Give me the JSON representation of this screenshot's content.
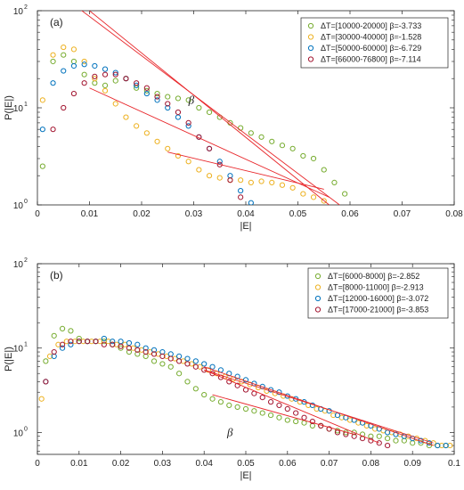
{
  "chart_data": [
    {
      "type": "scatter",
      "panel_label": "(a)",
      "xlabel": "|E|",
      "ylabel": "P(|E|)",
      "xlim": [
        0,
        0.08
      ],
      "ylim": [
        1,
        100
      ],
      "yscale": "log",
      "xticks": [
        "0",
        "0.01",
        "0.02",
        "0.03",
        "0.04",
        "0.05",
        "0.06",
        "0.07",
        "0.08"
      ],
      "xtick_values": [
        0,
        0.01,
        0.02,
        0.03,
        0.04,
        0.05,
        0.06,
        0.07,
        0.08
      ],
      "yticks": [
        {
          "base": "10",
          "exp": "0",
          "value": 1
        },
        {
          "base": "10",
          "exp": "1",
          "value": 10
        },
        {
          "base": "10",
          "exp": "2",
          "value": 100
        }
      ],
      "annotation": "β",
      "annotation_pos": [
        0.029,
        11
      ],
      "legend_position": "top-right",
      "series": [
        {
          "name": "ΔT=[10000-20000]  β=-3.733",
          "color": "#77ac30",
          "x": [
            0.001,
            0.003,
            0.005,
            0.007,
            0.009,
            0.011,
            0.013,
            0.015,
            0.017,
            0.019,
            0.021,
            0.023,
            0.025,
            0.027,
            0.029,
            0.031,
            0.033,
            0.035,
            0.037,
            0.039,
            0.041,
            0.043,
            0.045,
            0.047,
            0.049,
            0.051,
            0.053,
            0.055,
            0.057,
            0.059
          ],
          "y": [
            2.5,
            30,
            35,
            30,
            22,
            18,
            17,
            19,
            20,
            16,
            15,
            14,
            13,
            12.5,
            12,
            10,
            9,
            8,
            7,
            6.2,
            5.5,
            5,
            4.5,
            4.1,
            3.8,
            3.2,
            3,
            2.3,
            1.7,
            1.3
          ],
          "fit": {
            "x": [
              0.01,
              0.056
            ],
            "y": [
              16,
              1.2
            ]
          }
        },
        {
          "name": "ΔT=[30000-40000]  β=-1.528",
          "color": "#edb120",
          "x": [
            0.001,
            0.003,
            0.005,
            0.007,
            0.009,
            0.011,
            0.013,
            0.015,
            0.017,
            0.019,
            0.021,
            0.023,
            0.025,
            0.027,
            0.029,
            0.031,
            0.033,
            0.035,
            0.037,
            0.039,
            0.041,
            0.043,
            0.045,
            0.047,
            0.049,
            0.051,
            0.053,
            0.055
          ],
          "y": [
            12,
            35,
            42,
            40,
            30,
            20,
            15,
            11,
            8,
            6.5,
            5.5,
            4.5,
            3.8,
            3.2,
            2.8,
            2.3,
            2,
            1.9,
            1.8,
            1.8,
            1.7,
            1.75,
            1.7,
            1.6,
            1.5,
            1.3,
            1.2,
            1.1
          ],
          "fit": {
            "x": [
              0.025,
              0.055
            ],
            "y": [
              3.5,
              1.45
            ]
          }
        },
        {
          "name": "ΔT=[50000-60000]  β=-6.729",
          "color": "#0072bd",
          "x": [
            0.001,
            0.003,
            0.005,
            0.007,
            0.009,
            0.011,
            0.013,
            0.015,
            0.017,
            0.019,
            0.021,
            0.023,
            0.025,
            0.027,
            0.029,
            0.031,
            0.033,
            0.035,
            0.037,
            0.039,
            0.041
          ],
          "y": [
            6,
            18,
            24,
            27,
            28,
            27,
            25,
            23,
            20,
            17,
            14,
            12,
            10,
            8,
            6.5,
            5,
            3.8,
            2.8,
            2,
            1.4,
            1.05
          ],
          "fit": {
            "x": [
              0.008,
              0.058
            ],
            "y": [
              105,
              1.0
            ]
          }
        },
        {
          "name": "ΔT=[66000-76800]  β=-7.114",
          "color": "#a2142f",
          "x": [
            0.003,
            0.005,
            0.007,
            0.009,
            0.011,
            0.013,
            0.015,
            0.017,
            0.019,
            0.021,
            0.023,
            0.025,
            0.027,
            0.029,
            0.031,
            0.033,
            0.035,
            0.037,
            0.039
          ],
          "y": [
            6,
            10,
            14,
            18,
            21,
            22,
            22,
            20,
            18,
            16,
            13,
            11,
            9,
            7,
            5,
            3.8,
            2.6,
            1.8,
            1.2
          ],
          "fit": {
            "x": [
              0.0095,
              0.056
            ],
            "y": [
              105,
              1.0
            ]
          }
        }
      ]
    },
    {
      "type": "scatter",
      "panel_label": "(b)",
      "xlabel": "|E|",
      "ylabel": "P(|E|)",
      "xlim": [
        0,
        0.1
      ],
      "ylim": [
        0.55,
        100
      ],
      "yscale": "log",
      "xticks": [
        "0",
        "0.01",
        "0.02",
        "0.03",
        "0.04",
        "0.05",
        "0.06",
        "0.07",
        "0.08",
        "0.09",
        "0.1"
      ],
      "xtick_values": [
        0,
        0.01,
        0.02,
        0.03,
        0.04,
        0.05,
        0.06,
        0.07,
        0.08,
        0.09,
        0.1
      ],
      "yticks": [
        {
          "base": "10",
          "exp": "0",
          "value": 1
        },
        {
          "base": "10",
          "exp": "1",
          "value": 10
        },
        {
          "base": "10",
          "exp": "2",
          "value": 100
        }
      ],
      "annotation": "β",
      "annotation_pos": [
        0.0455,
        0.9
      ],
      "legend_position": "top-right",
      "series": [
        {
          "name": "ΔT=[6000-8000]  β=-2.852",
          "color": "#77ac30",
          "x": [
            0.002,
            0.004,
            0.006,
            0.008,
            0.01,
            0.012,
            0.014,
            0.016,
            0.018,
            0.02,
            0.022,
            0.024,
            0.026,
            0.028,
            0.03,
            0.032,
            0.034,
            0.036,
            0.038,
            0.04,
            0.042,
            0.044,
            0.046,
            0.048,
            0.05,
            0.052,
            0.054,
            0.056,
            0.058,
            0.06,
            0.062,
            0.064,
            0.066,
            0.068,
            0.07,
            0.072,
            0.074,
            0.076,
            0.078,
            0.08,
            0.082,
            0.084,
            0.086,
            0.088,
            0.09,
            0.092,
            0.094,
            0.096,
            0.098
          ],
          "y": [
            7,
            14,
            17,
            16,
            13,
            12,
            12,
            12,
            11,
            10,
            9,
            8.5,
            8,
            7,
            6.5,
            6,
            5,
            4,
            3.3,
            2.8,
            2.5,
            2.3,
            2.1,
            2,
            1.9,
            1.8,
            1.7,
            1.6,
            1.5,
            1.4,
            1.35,
            1.3,
            1.2,
            1.2,
            1.1,
            1.05,
            1.0,
            1.0,
            0.95,
            0.9,
            0.9,
            0.85,
            0.8,
            0.8,
            0.75,
            0.75,
            0.7,
            0.7,
            0.7
          ],
          "fit": {
            "x": [
              0.042,
              0.076
            ],
            "y": [
              2.8,
              0.95
            ]
          }
        },
        {
          "name": "ΔT=[8000-11000]  β=-2.913",
          "color": "#edb120",
          "x": [
            0.001,
            0.003,
            0.005,
            0.007,
            0.009,
            0.011,
            0.013,
            0.015,
            0.017,
            0.019,
            0.021,
            0.023,
            0.025,
            0.027,
            0.029,
            0.031,
            0.033,
            0.035,
            0.037,
            0.039,
            0.041,
            0.043,
            0.045,
            0.047,
            0.049,
            0.051,
            0.053,
            0.055,
            0.057,
            0.059,
            0.061,
            0.063,
            0.065,
            0.067,
            0.069,
            0.071,
            0.073,
            0.075,
            0.077,
            0.079,
            0.081,
            0.083,
            0.085,
            0.087,
            0.089,
            0.091,
            0.093,
            0.095,
            0.097,
            0.099
          ],
          "y": [
            2.5,
            8,
            11,
            12,
            12,
            12,
            12,
            12,
            12,
            11,
            11,
            10,
            9.5,
            9,
            8.5,
            8,
            7.5,
            7,
            6.5,
            6,
            5.5,
            5,
            4.6,
            4.3,
            4,
            3.7,
            3.4,
            3.1,
            2.9,
            2.7,
            2.5,
            2.3,
            2.1,
            1.9,
            1.8,
            1.6,
            1.5,
            1.4,
            1.3,
            1.2,
            1.1,
            1.05,
            1.0,
            0.95,
            0.9,
            0.85,
            0.8,
            0.75,
            0.7,
            0.7
          ],
          "fit": {
            "x": [
              0.04,
              0.095
            ],
            "y": [
              5.5,
              0.75
            ]
          }
        },
        {
          "name": "ΔT=[12000-16000]  β=-3.072",
          "color": "#0072bd",
          "x": [
            0.002,
            0.004,
            0.006,
            0.008,
            0.01,
            0.012,
            0.014,
            0.016,
            0.018,
            0.02,
            0.022,
            0.024,
            0.026,
            0.028,
            0.03,
            0.032,
            0.034,
            0.036,
            0.038,
            0.04,
            0.042,
            0.044,
            0.046,
            0.048,
            0.05,
            0.052,
            0.054,
            0.056,
            0.058,
            0.06,
            0.062,
            0.064,
            0.066,
            0.068,
            0.07,
            0.072,
            0.074,
            0.076,
            0.078,
            0.08,
            0.082,
            0.084,
            0.086,
            0.088,
            0.09,
            0.092,
            0.094,
            0.096,
            0.098
          ],
          "y": [
            4,
            8,
            10,
            11,
            12,
            12,
            12,
            13,
            12,
            12,
            11.5,
            11,
            10,
            9.5,
            9,
            8.5,
            8,
            7.5,
            7,
            6.5,
            6,
            5.5,
            5,
            4.6,
            4.2,
            3.8,
            3.5,
            3.2,
            3,
            2.7,
            2.5,
            2.3,
            2.1,
            1.9,
            1.8,
            1.6,
            1.5,
            1.4,
            1.3,
            1.2,
            1.1,
            1.0,
            0.95,
            0.9,
            0.85,
            0.8,
            0.75,
            0.7,
            0.7
          ],
          "fit": {
            "x": [
              0.04,
              0.095
            ],
            "y": [
              6,
              0.7
            ]
          }
        },
        {
          "name": "ΔT=[17000-21000]  β=-3.853",
          "color": "#a2142f",
          "x": [
            0.002,
            0.004,
            0.006,
            0.008,
            0.01,
            0.012,
            0.014,
            0.016,
            0.018,
            0.02,
            0.022,
            0.024,
            0.026,
            0.028,
            0.03,
            0.032,
            0.034,
            0.036,
            0.038,
            0.04,
            0.042,
            0.044,
            0.046,
            0.048,
            0.05,
            0.052,
            0.054,
            0.056,
            0.058,
            0.06,
            0.062,
            0.064,
            0.066,
            0.068,
            0.07,
            0.072,
            0.074,
            0.076,
            0.078,
            0.08,
            0.082,
            0.084
          ],
          "y": [
            4,
            9,
            11,
            12,
            12,
            12,
            12,
            11,
            11,
            10.5,
            10,
            9.5,
            9,
            8.5,
            8,
            7.5,
            7,
            6.5,
            6,
            5.5,
            5,
            4.5,
            4,
            3.6,
            3.2,
            2.9,
            2.6,
            2.3,
            2.1,
            1.9,
            1.7,
            1.5,
            1.35,
            1.2,
            1.1,
            1.0,
            0.95,
            0.9,
            0.85,
            0.8,
            0.75,
            0.7
          ],
          "fit": {
            "x": [
              0.04,
              0.082
            ],
            "y": [
              5.5,
              0.75
            ]
          }
        }
      ]
    }
  ]
}
